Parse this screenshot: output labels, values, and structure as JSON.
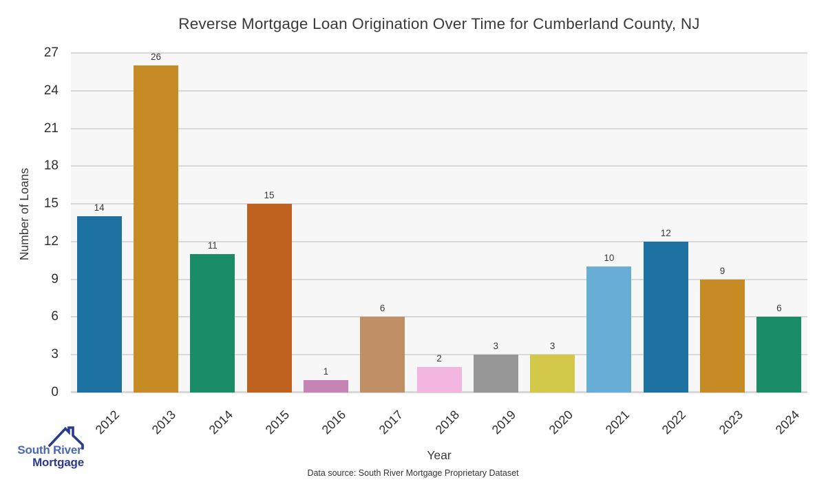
{
  "chart_data": {
    "type": "bar",
    "title": "Reverse Mortgage Loan Origination Over Time for Cumberland County, NJ",
    "xlabel": "Year",
    "ylabel": "Number of Loans",
    "categories": [
      "2012",
      "2013",
      "2014",
      "2015",
      "2016",
      "2017",
      "2018",
      "2019",
      "2020",
      "2021",
      "2022",
      "2023",
      "2024"
    ],
    "values": [
      14,
      26,
      11,
      15,
      1,
      6,
      2,
      3,
      3,
      10,
      12,
      9,
      6
    ],
    "bar_colors": [
      "#1c71a1",
      "#c68b24",
      "#1a8d68",
      "#bf6220",
      "#c583b6",
      "#c18f66",
      "#f2b6e0",
      "#979797",
      "#d2c94a",
      "#68add6",
      "#1c71a1",
      "#c68b24",
      "#1a8d68"
    ],
    "ylim": [
      0,
      27
    ],
    "yticks": [
      0,
      3,
      6,
      9,
      12,
      15,
      18,
      21,
      24,
      27
    ],
    "grid": "horizontal",
    "legend": "none",
    "value_labels_shown": true,
    "plot_bg_color": "#f7f7f7",
    "grid_color": "#d8d8d8",
    "text_color": "#3a3a3a",
    "tick_color": "#2f2f2f"
  },
  "footer": {
    "data_source": "Data source: South River Mortgage Proprietary Dataset"
  },
  "logo": {
    "line1": "South River",
    "line2": "Mortgage",
    "line1_color": "#4a67b5",
    "line2_color": "#2b3a8c",
    "roof_color": "#2b3a8c"
  }
}
